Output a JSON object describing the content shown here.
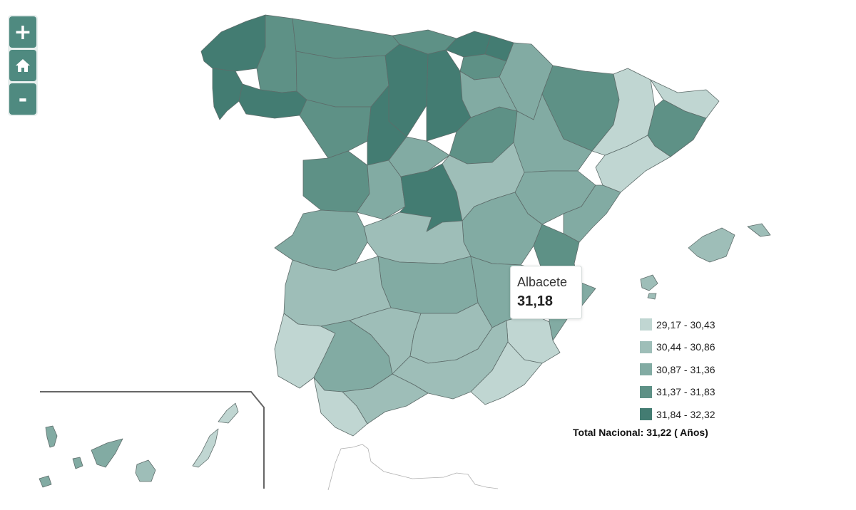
{
  "zoom": {
    "zoom_in_label": "+",
    "zoom_out_label": "-"
  },
  "tooltip": {
    "name": "Albacete",
    "value": "31,18"
  },
  "legend": {
    "items": [
      {
        "label": "29,17 - 30,43",
        "color": "#c0d6d2"
      },
      {
        "label": "30,44 - 30,86",
        "color": "#9ebeb8"
      },
      {
        "label": "30,87 - 31,36",
        "color": "#82aba3"
      },
      {
        "label": "31,37 - 31,83",
        "color": "#5e9186"
      },
      {
        "label": "31,84 - 32,32",
        "color": "#437c72"
      }
    ]
  },
  "total": "Total Nacional: 31,22 ( Años)"
}
